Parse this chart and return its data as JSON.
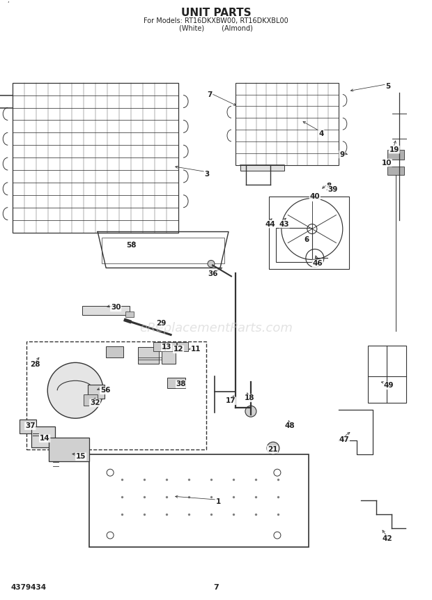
{
  "title": "UNIT PARTS",
  "subtitle1": "For Models: RT16DKXBW00, RT16DKXBL00",
  "subtitle2": "(White)        (Almond)",
  "page_num": "7",
  "doc_num": "4379434",
  "watermark": "eReplacementParts.com",
  "bg_color": "#ffffff",
  "line_color": "#333333",
  "text_color": "#222222",
  "watermark_color": "#cccccc"
}
